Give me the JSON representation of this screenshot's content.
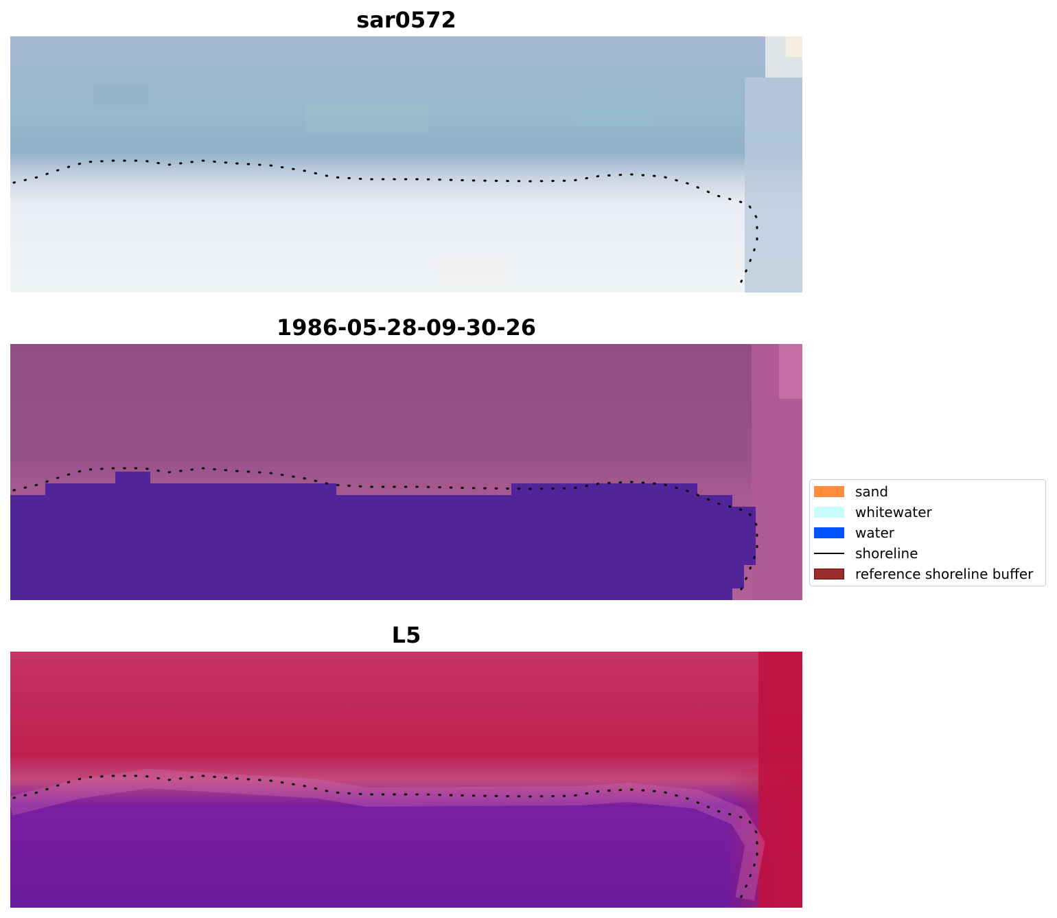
{
  "panels": [
    {
      "title": "sar0572",
      "style": "rgb",
      "shoreline_color": "#000000"
    },
    {
      "title": "1986-05-28-09-30-26",
      "style": "classified",
      "shoreline_color": "#000000"
    },
    {
      "title": "L5",
      "style": "index",
      "shoreline_color": "#000000"
    }
  ],
  "legend": {
    "items": [
      {
        "label": "sand",
        "kind": "patch",
        "color": "#ff8c3a"
      },
      {
        "label": "whitewater",
        "kind": "patch",
        "color": "#c8fcfc"
      },
      {
        "label": "water",
        "kind": "patch",
        "color": "#0055ff"
      },
      {
        "label": "shoreline",
        "kind": "line",
        "color": "#000000"
      },
      {
        "label": "reference shoreline buffer",
        "kind": "patch",
        "color": "#9b2c2c",
        "edge": "#7a1010"
      }
    ]
  },
  "colors": {
    "water_class": "#52249a",
    "buffer_magenta": "#b05a95",
    "sea_rgb": "#9cb5cf",
    "beach_rgb": "#eef1f5"
  }
}
